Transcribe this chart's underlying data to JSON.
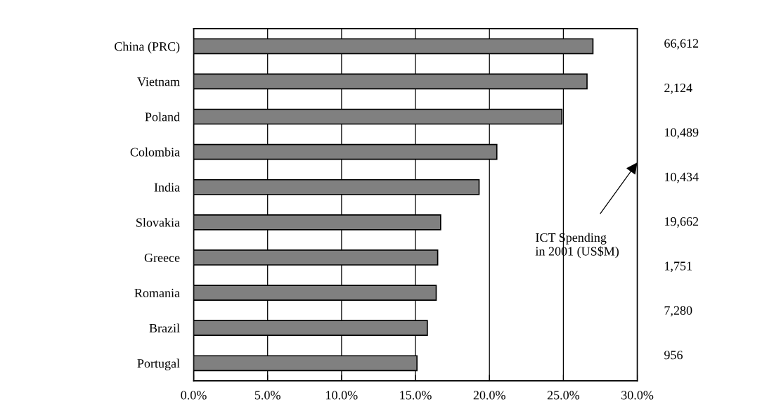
{
  "chart_data": {
    "type": "bar",
    "orientation": "horizontal",
    "categories": [
      "China (PRC)",
      "Vietnam",
      "Poland",
      "Colombia",
      "India",
      "Slovakia",
      "Greece",
      "Romania",
      "Brazil",
      "Portugal"
    ],
    "values": [
      27.0,
      26.6,
      24.9,
      20.5,
      19.3,
      16.7,
      16.5,
      16.4,
      15.8,
      15.1
    ],
    "color": "#808080",
    "xlim": [
      0,
      30
    ],
    "xticks": [
      {
        "value": 0,
        "label": "0.0%"
      },
      {
        "value": 5,
        "label": "5.0%"
      },
      {
        "value": 10,
        "label": "10.0%"
      },
      {
        "value": 15,
        "label": "15.0%"
      },
      {
        "value": 20,
        "label": "20.0%"
      },
      {
        "value": 25,
        "label": "25.0%"
      },
      {
        "value": 30,
        "label": "30.0%"
      }
    ],
    "grid": "x",
    "annotations": [
      "ICT Spending\nin 2001 (US$M)",
      "66,612",
      "2,124",
      "10,489",
      "10,434",
      "19,662",
      "1,751",
      "7,280",
      "956"
    ]
  }
}
